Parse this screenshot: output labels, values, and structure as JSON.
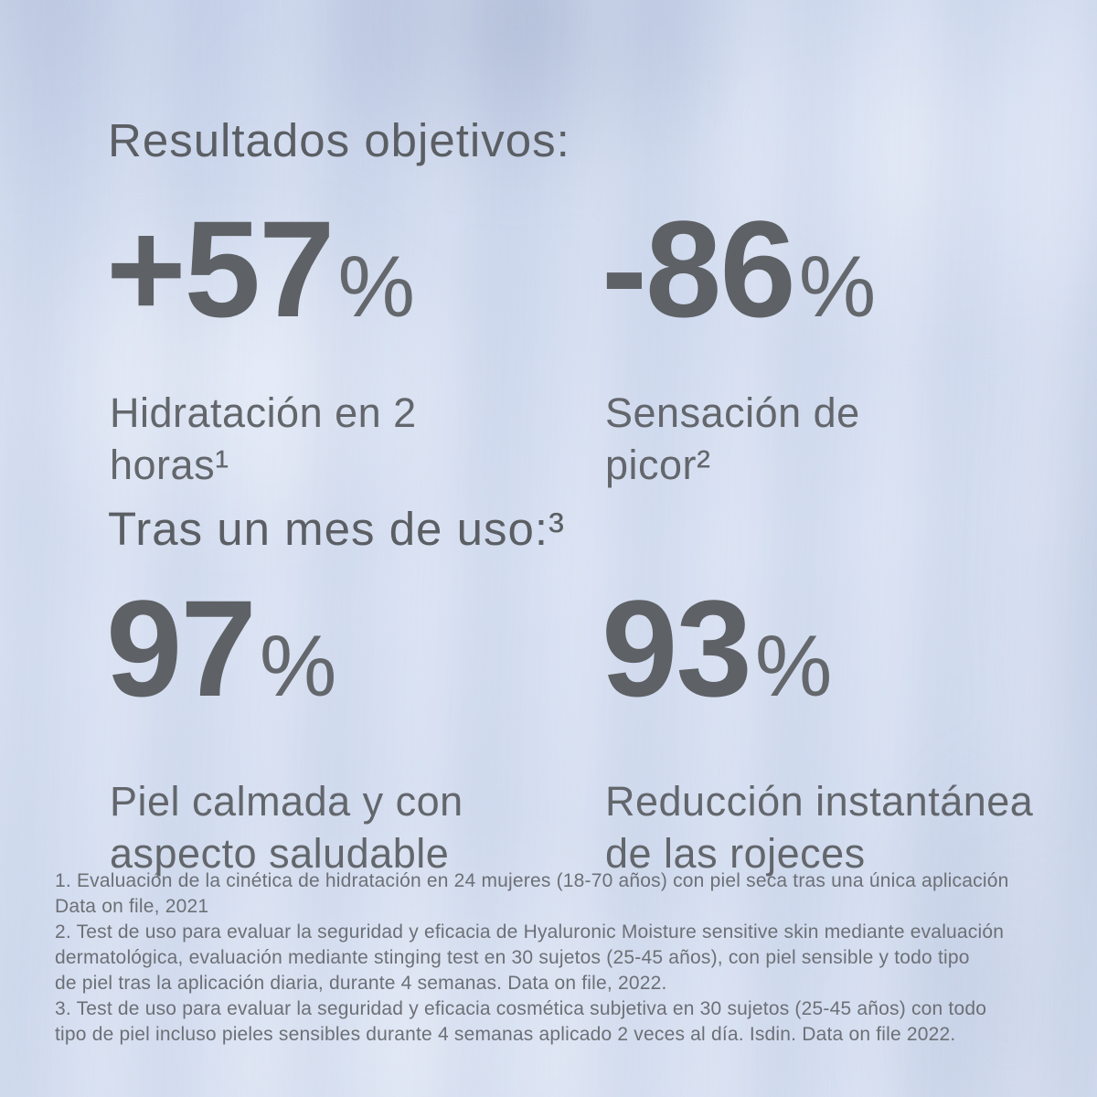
{
  "page": {
    "type": "product-claims-infographic",
    "language": "es",
    "background": {
      "base": "#cfd9ee",
      "shade_dark": "#bfcbe4",
      "shade_light": "#e3e9f6"
    },
    "text_colors": {
      "heading": "#5b5f64",
      "number": "#5e6165",
      "label": "#63676c",
      "footnote": "#6c7076"
    }
  },
  "header": {
    "title": "Resultados objetivos:"
  },
  "stats_objective_results": [
    {
      "value": "+57",
      "unit": "%",
      "label": "Hidratación en 2\nhoras¹"
    },
    {
      "value": "-86",
      "unit": "%",
      "label": "Sensación de\npicor²"
    }
  ],
  "subheader": {
    "title": "Tras un mes de uso:³"
  },
  "stats_after_one_month": [
    {
      "value": "97",
      "unit": "%",
      "label": "Piel calmada y con\naspecto saludable"
    },
    {
      "value": "93",
      "unit": "%",
      "label": "Reducción instantánea\nde las rojeces"
    }
  ],
  "footnotes": [
    "1. Evaluación de la cinética de hidratación en 24 mujeres (18-70 años) con piel seca tras una única aplicación\nData on file, 2021",
    "2. Test de uso para evaluar la seguridad y eficacia de Hyaluronic Moisture sensitive skin mediante evaluación\ndermatológica, evaluación mediante stinging test en 30 sujetos (25-45 años), con piel sensible y todo tipo\nde piel tras la aplicación diaria, durante 4 semanas. Data on file, 2022.",
    "3. Test de uso para evaluar la seguridad y eficacia cosmética subjetiva en 30 sujetos (25-45 años) con todo\ntipo de piel incluso pieles sensibles durante 4 semanas aplicado 2 veces al día. Isdin. Data on file 2022."
  ]
}
